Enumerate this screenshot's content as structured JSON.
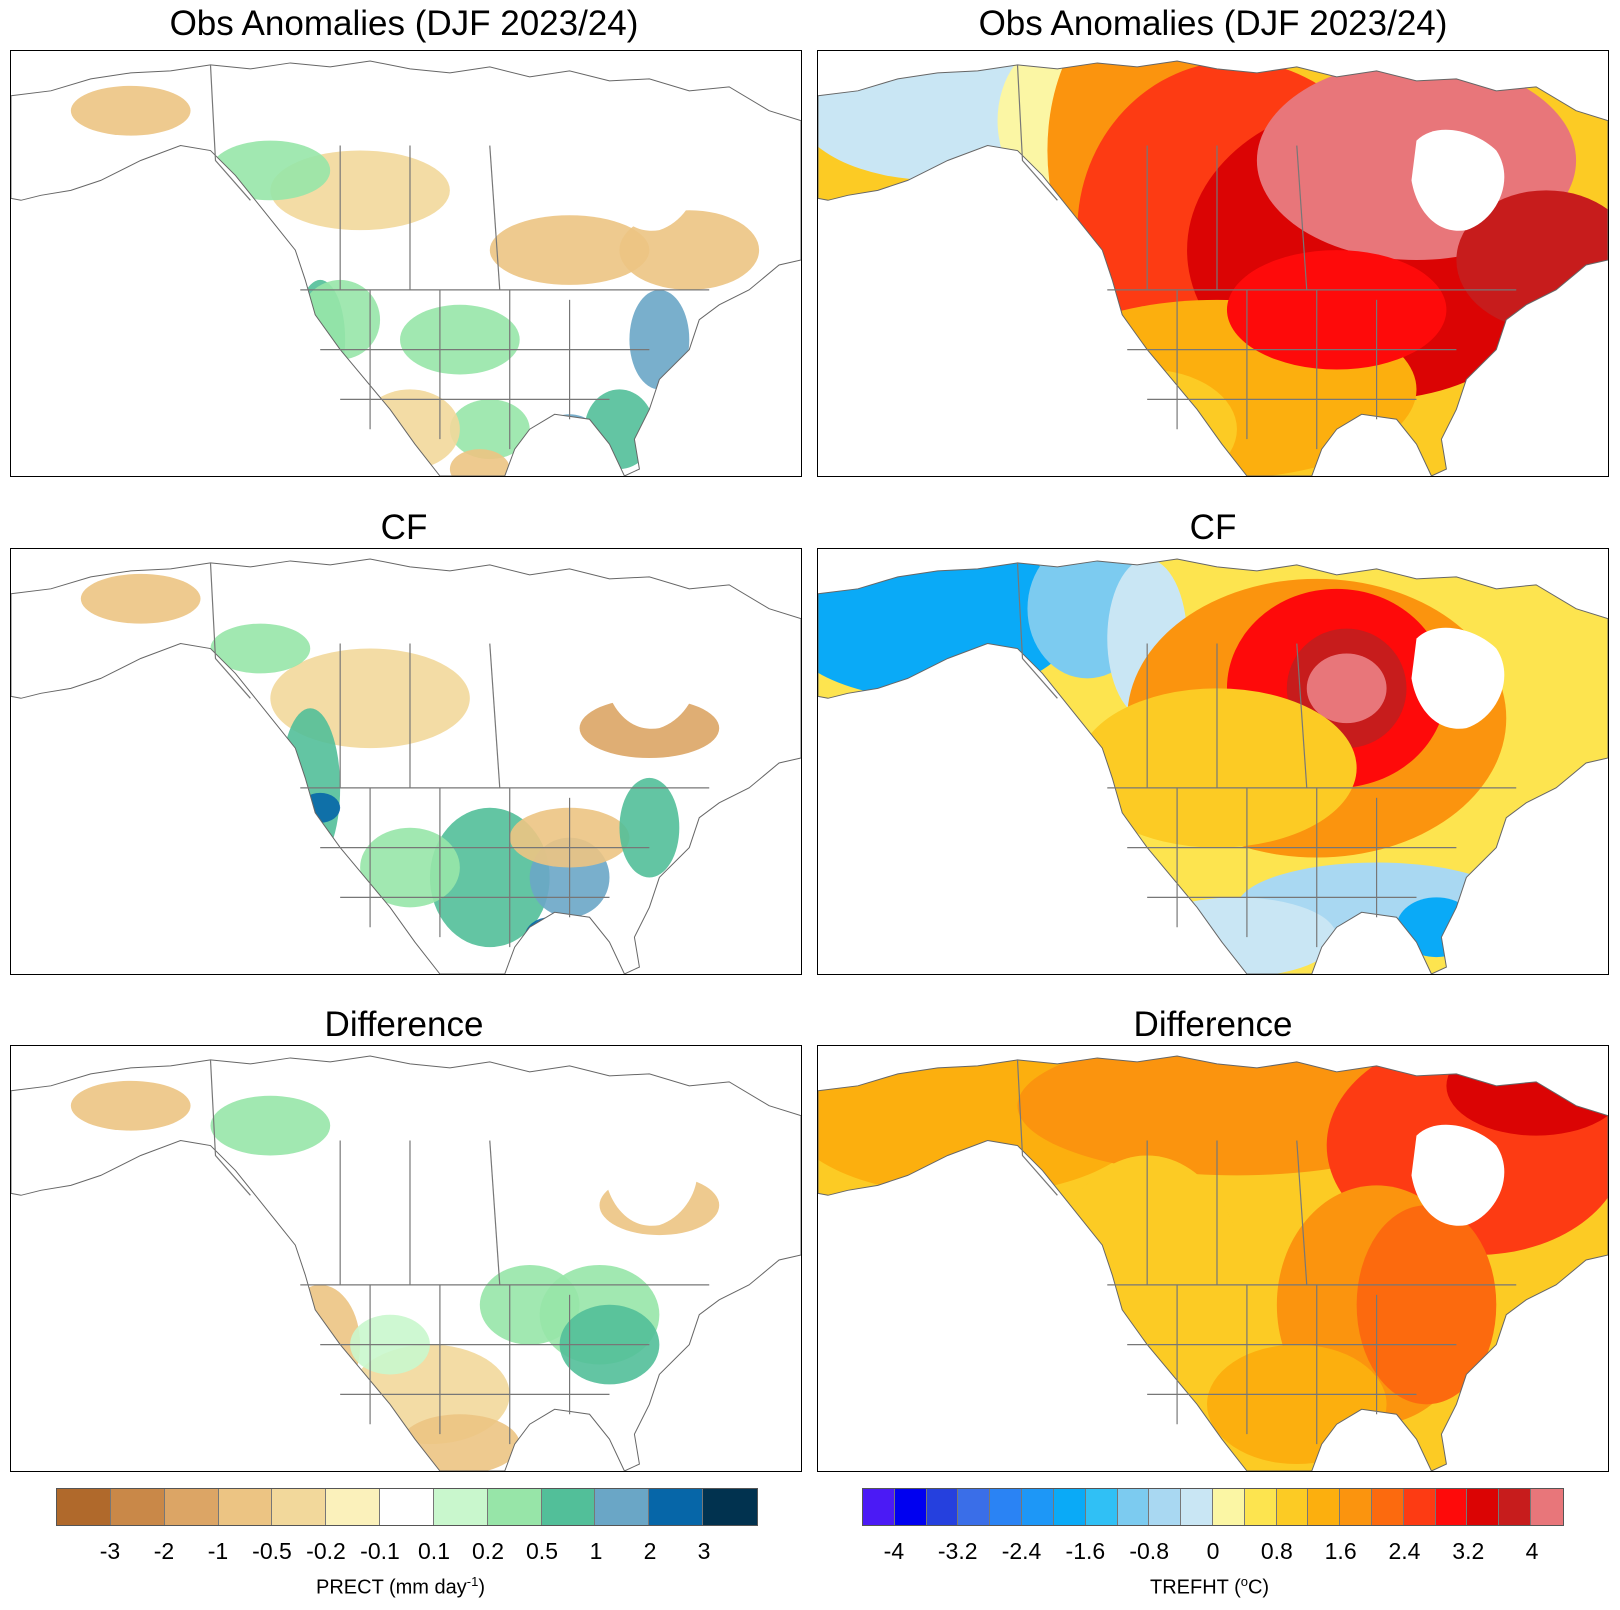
{
  "panels": {
    "left_top_title": "Obs Anomalies (DJF 2023/24)",
    "right_top_title": "Obs Anomalies (DJF 2023/24)",
    "left_mid_title": "CF",
    "right_mid_title": "CF",
    "left_bot_title": "Difference",
    "right_bot_title": "Difference"
  },
  "maps": {
    "left_top": {
      "variable": "PRECT",
      "region": "North America"
    },
    "right_top": {
      "variable": "TREFHT",
      "region": "North America"
    },
    "left_mid": {
      "variable": "PRECT",
      "region": "North America"
    },
    "right_mid": {
      "variable": "TREFHT",
      "region": "North America"
    },
    "left_bot": {
      "variable": "PRECT",
      "region": "North America"
    },
    "right_bot": {
      "variable": "TREFHT",
      "region": "North America"
    }
  },
  "precip_colorbar": {
    "label_main": "PRECT (mm day",
    "label_sup": "-1",
    "label_end": ")",
    "colors": [
      "#b0692b",
      "#c98848",
      "#dca565",
      "#ecc483",
      "#f2d89b",
      "#fbf1bb",
      "#ffffff",
      "#c9f7cd",
      "#97e5a8",
      "#52bf99",
      "#6aa6c6",
      "#0666a8",
      "#01324f"
    ],
    "ticks": [
      "-3",
      "-2",
      "-1",
      "-0.5",
      "-0.2",
      "-0.1",
      "0.1",
      "0.2",
      "0.5",
      "1",
      "2",
      "3"
    ]
  },
  "temp_colorbar": {
    "label_main": "TREFHT (",
    "label_sup": "o",
    "label_end": "C)",
    "colors": [
      "#4b1af5",
      "#0000f0",
      "#2540de",
      "#3a6ee8",
      "#2a83f4",
      "#1d97f7",
      "#0aaaf7",
      "#30c0f5",
      "#7ccbf0",
      "#a9d8f2",
      "#c9e6f4",
      "#fbf6a4",
      "#fde44f",
      "#fccb24",
      "#fcaf0e",
      "#fb940e",
      "#fc6a0e",
      "#fd3b13",
      "#fe0a0a",
      "#db0404",
      "#c71c1c",
      "#e8767a"
    ],
    "ticks": [
      "-4",
      "-3.2",
      "-2.4",
      "-1.6",
      "-0.8",
      "0",
      "0.8",
      "1.6",
      "2.4",
      "3.2",
      "4"
    ]
  }
}
